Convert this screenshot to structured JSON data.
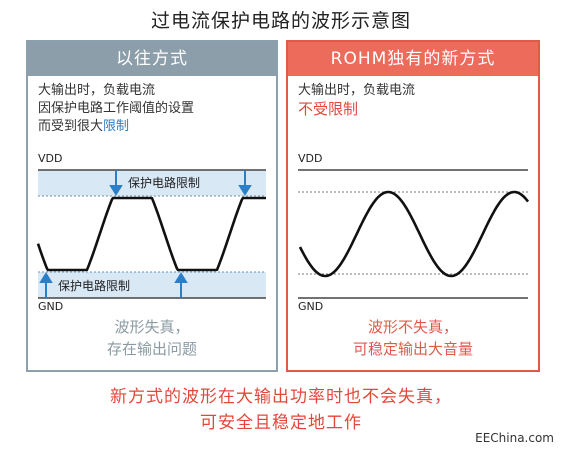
{
  "title": "过电流保护电路的波形示意图",
  "left_panel": {
    "header": "以往方式",
    "desc_line1": "大输出时，负载电流",
    "desc_line2": "因保护电路工作阈值的设置",
    "desc_line3_plain": "而受到很大",
    "desc_line3_accent": "限制",
    "vdd_label": "VDD",
    "gnd_label": "GND",
    "top_band_label": "保护电路限制",
    "bottom_band_label": "保护电路限制",
    "caption_line1": "波形失真，",
    "caption_line2": "存在输出问题"
  },
  "right_panel": {
    "header": "ROHM独有的新方式",
    "desc_line1": "大输出时，负载电流",
    "desc_line2": "不受限制",
    "vdd_label": "VDD",
    "gnd_label": "GND",
    "caption_line1": "波形不失真，",
    "caption_line2": "可稳定输出大音量"
  },
  "bottom_line1": "新方式的波形在大输出功率时也不会失真，",
  "bottom_line2": "可安全且稳定地工作",
  "brand": "EEChina.com",
  "colors": {
    "left_accent": "#8b9ea9",
    "right_accent": "#ec6b5b",
    "highlight_blue": "#2a7fc8",
    "highlight_red": "#e0493a",
    "band_fill": "#d9e8f5"
  }
}
